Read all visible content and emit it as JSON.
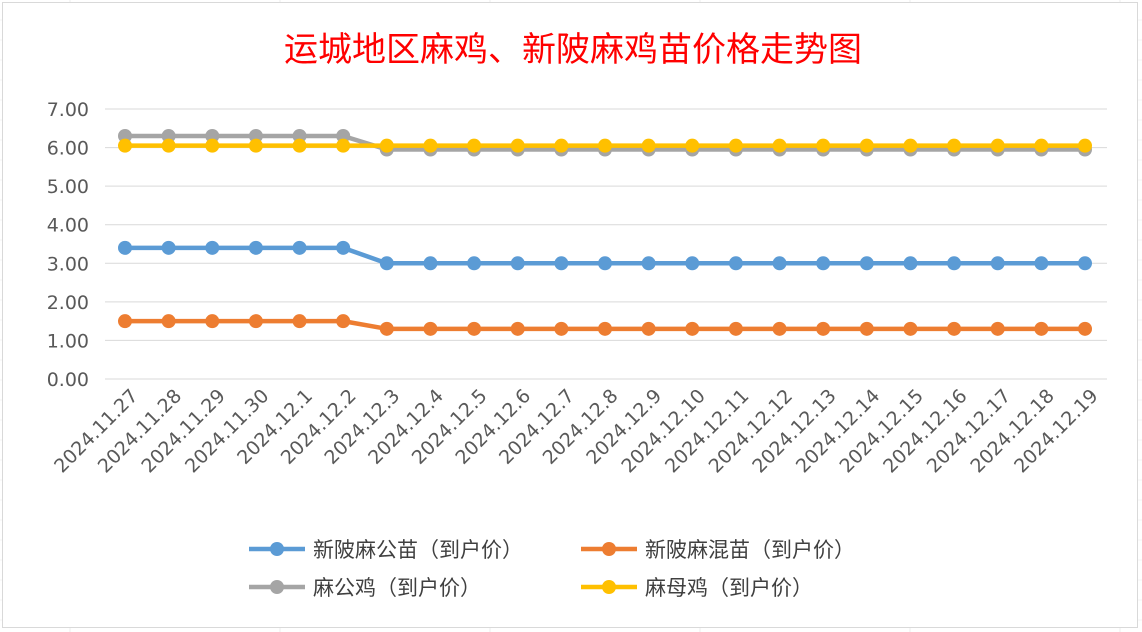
{
  "chart_data": {
    "type": "line",
    "title": "运城地区麻鸡、新陂麻鸡苗价格走势图",
    "title_color": "#ff0000",
    "categories": [
      "2024.11.27",
      "2024.11.28",
      "2024.11.29",
      "2024.11.30",
      "2024.12.1",
      "2024.12.2",
      "2024.12.3",
      "2024.12.4",
      "2024.12.5",
      "2024.12.6",
      "2024.12.7",
      "2024.12.8",
      "2024.12.9",
      "2024.12.10",
      "2024.12.11",
      "2024.12.12",
      "2024.12.13",
      "2024.12.14",
      "2024.12.15",
      "2024.12.16",
      "2024.12.17",
      "2024.12.18",
      "2024.12.19"
    ],
    "y_ticks": [
      "0.00",
      "1.00",
      "2.00",
      "3.00",
      "4.00",
      "5.00",
      "6.00",
      "7.00"
    ],
    "ylim": [
      0,
      7
    ],
    "grid": true,
    "legend_position": "bottom",
    "series": [
      {
        "name": "新陂麻公苗（到户价）",
        "color": "#5b9bd5",
        "values": [
          3.4,
          3.4,
          3.4,
          3.4,
          3.4,
          3.4,
          3.0,
          3.0,
          3.0,
          3.0,
          3.0,
          3.0,
          3.0,
          3.0,
          3.0,
          3.0,
          3.0,
          3.0,
          3.0,
          3.0,
          3.0,
          3.0,
          3.0
        ]
      },
      {
        "name": "新陂麻混苗（到户价）",
        "color": "#ed7d31",
        "values": [
          1.5,
          1.5,
          1.5,
          1.5,
          1.5,
          1.5,
          1.3,
          1.3,
          1.3,
          1.3,
          1.3,
          1.3,
          1.3,
          1.3,
          1.3,
          1.3,
          1.3,
          1.3,
          1.3,
          1.3,
          1.3,
          1.3,
          1.3
        ]
      },
      {
        "name": "麻公鸡（到户价）",
        "color": "#a5a5a5",
        "values": [
          6.3,
          6.3,
          6.3,
          6.3,
          6.3,
          6.3,
          5.95,
          5.95,
          5.95,
          5.95,
          5.95,
          5.95,
          5.95,
          5.95,
          5.95,
          5.95,
          5.95,
          5.95,
          5.95,
          5.95,
          5.95,
          5.95,
          5.95
        ]
      },
      {
        "name": "麻母鸡（到户价）",
        "color": "#ffc000",
        "values": [
          6.05,
          6.05,
          6.05,
          6.05,
          6.05,
          6.05,
          6.05,
          6.05,
          6.05,
          6.05,
          6.05,
          6.05,
          6.05,
          6.05,
          6.05,
          6.05,
          6.05,
          6.05,
          6.05,
          6.05,
          6.05,
          6.05,
          6.05
        ]
      }
    ]
  }
}
